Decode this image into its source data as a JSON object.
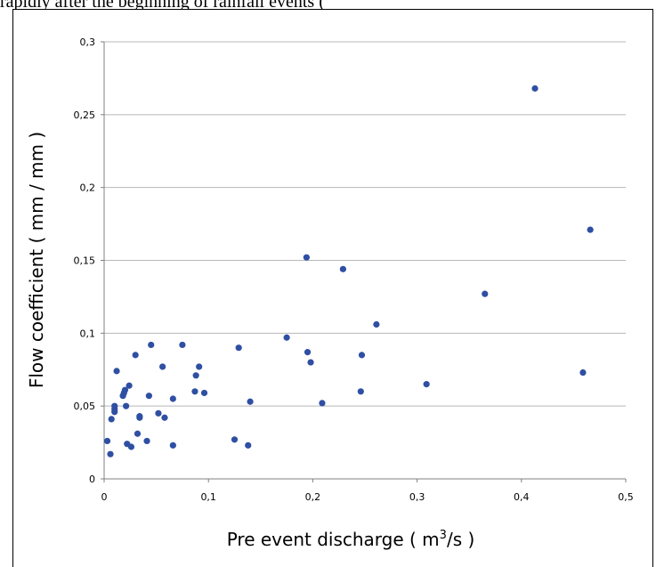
{
  "top_caption": "rapidly after the beginning of rainfall events (",
  "chart_data": {
    "type": "scatter",
    "title": "",
    "xlabel": "Pre event discharge ( m³/s )",
    "xlabel_parts": {
      "before": "Pre event discharge ( m",
      "sup": "3",
      "after": "/s )"
    },
    "ylabel": "Flow coefficient ( mm / mm )",
    "xlim": [
      0,
      0.5
    ],
    "ylim": [
      0,
      0.3
    ],
    "xticks": [
      0,
      0.1,
      0.2,
      0.3,
      0.4,
      0.5
    ],
    "xtick_labels": [
      "0",
      "0,1",
      "0,2",
      "0,3",
      "0,4",
      "0,5"
    ],
    "yticks": [
      0,
      0.05,
      0.1,
      0.15,
      0.2,
      0.25,
      0.3
    ],
    "ytick_labels": [
      "0",
      "0,05",
      "0,1",
      "0,15",
      "0,2",
      "0,25",
      "0,3"
    ],
    "grid": "horizontal",
    "marker_color": "#2f4fa3",
    "series": [
      {
        "points": [
          [
            0.003,
            0.026
          ],
          [
            0.006,
            0.017
          ],
          [
            0.007,
            0.041
          ],
          [
            0.01,
            0.05
          ],
          [
            0.01,
            0.048
          ],
          [
            0.01,
            0.046
          ],
          [
            0.012,
            0.074
          ],
          [
            0.018,
            0.057
          ],
          [
            0.019,
            0.059
          ],
          [
            0.02,
            0.061
          ],
          [
            0.021,
            0.05
          ],
          [
            0.022,
            0.024
          ],
          [
            0.024,
            0.064
          ],
          [
            0.026,
            0.022
          ],
          [
            0.03,
            0.085
          ],
          [
            0.032,
            0.031
          ],
          [
            0.034,
            0.042
          ],
          [
            0.034,
            0.043
          ],
          [
            0.041,
            0.026
          ],
          [
            0.043,
            0.057
          ],
          [
            0.045,
            0.092
          ],
          [
            0.052,
            0.045
          ],
          [
            0.056,
            0.077
          ],
          [
            0.058,
            0.042
          ],
          [
            0.066,
            0.055
          ],
          [
            0.066,
            0.023
          ],
          [
            0.075,
            0.092
          ],
          [
            0.087,
            0.06
          ],
          [
            0.088,
            0.071
          ],
          [
            0.091,
            0.077
          ],
          [
            0.096,
            0.059
          ],
          [
            0.125,
            0.027
          ],
          [
            0.129,
            0.09
          ],
          [
            0.138,
            0.023
          ],
          [
            0.14,
            0.053
          ],
          [
            0.175,
            0.097
          ],
          [
            0.194,
            0.152
          ],
          [
            0.195,
            0.087
          ],
          [
            0.198,
            0.08
          ],
          [
            0.209,
            0.052
          ],
          [
            0.229,
            0.144
          ],
          [
            0.246,
            0.06
          ],
          [
            0.247,
            0.085
          ],
          [
            0.261,
            0.106
          ],
          [
            0.309,
            0.065
          ],
          [
            0.365,
            0.127
          ],
          [
            0.413,
            0.268
          ],
          [
            0.459,
            0.073
          ],
          [
            0.466,
            0.171
          ]
        ]
      }
    ]
  }
}
